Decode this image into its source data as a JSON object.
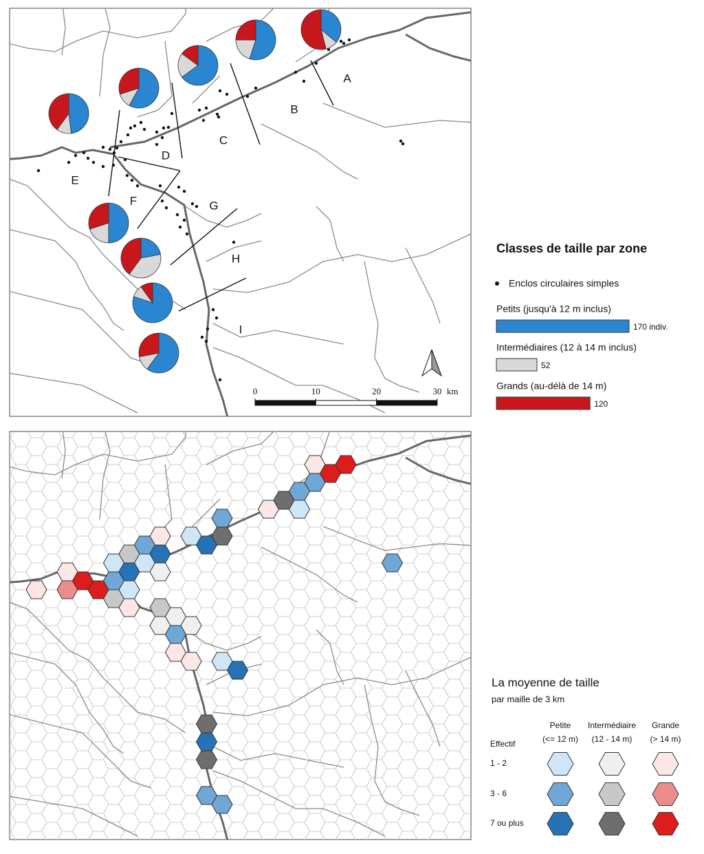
{
  "map_top": {
    "legend_title": "Classes de taille par zone",
    "dots_label": "Enclos circulaires simples",
    "classes": [
      {
        "label": "Petits (jusqu'à 12 m inclus)",
        "color": "#2a86d1",
        "value": 170,
        "value_label": "170 indiv."
      },
      {
        "label": "Intermédiaires (12 à 14 m inclus)",
        "color": "#d9d9d9",
        "value": 52
      },
      {
        "label": "Grands (au-délà de 14 m)",
        "color": "#c8161d",
        "value": 120
      }
    ],
    "zones": [
      "A",
      "B",
      "C",
      "D",
      "E",
      "F",
      "G",
      "H",
      "I"
    ],
    "pies": [
      [
        36,
        10,
        54
      ],
      [
        55,
        20,
        25
      ],
      [
        65,
        20,
        15
      ],
      [
        58,
        12,
        30
      ],
      [
        48,
        12,
        40
      ],
      [
        50,
        20,
        30
      ],
      [
        22,
        38,
        40
      ],
      [
        80,
        10,
        10
      ],
      [
        60,
        12,
        28
      ]
    ],
    "scale": {
      "ticks": [
        0,
        10,
        20,
        30
      ],
      "unit": "km"
    }
  },
  "map_bottom": {
    "title": "La moyenne de taille",
    "subtitle": "par maille de 3 km",
    "row_header": "Effectif",
    "columns": [
      {
        "name": "Petite",
        "range": "(<= 12 m)"
      },
      {
        "name": "Intermédiaire",
        "range": "(12 - 14 m)"
      },
      {
        "name": "Grande",
        "range": "(> 14 m)"
      }
    ],
    "rows": [
      "1 - 2",
      "3 - 6",
      "7 ou plus"
    ]
  }
}
